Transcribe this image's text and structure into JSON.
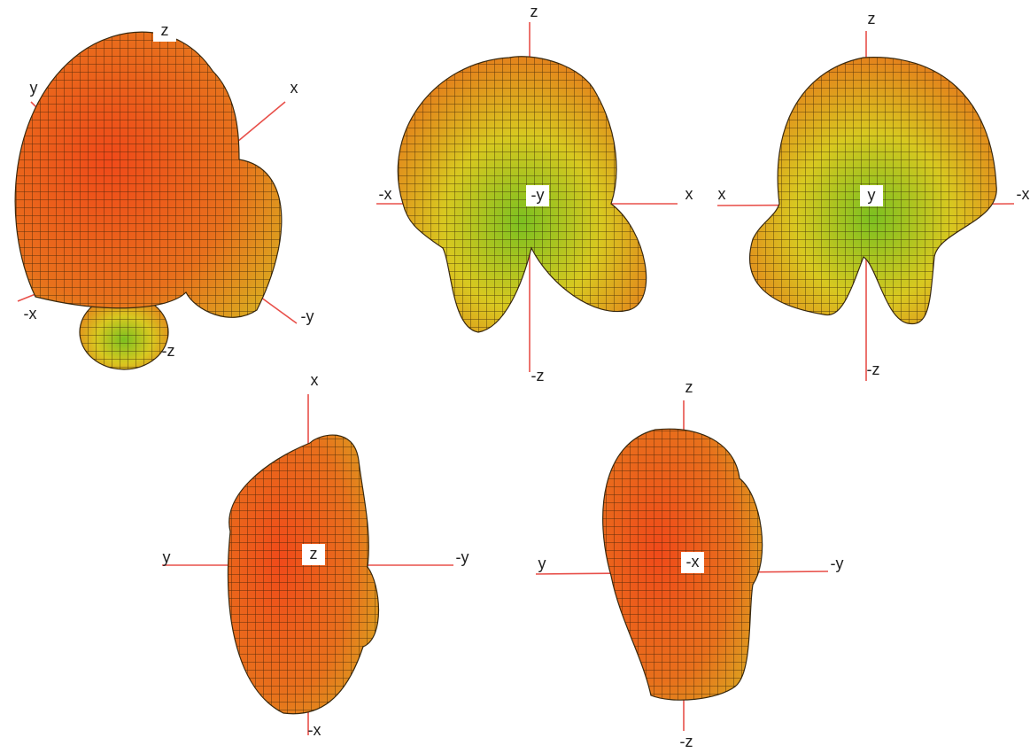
{
  "views": [
    {
      "labels": [
        "z",
        "y",
        "x",
        "-x",
        "-y",
        "-z"
      ]
    },
    {
      "labels": [
        "z",
        "-x",
        "-y",
        "x",
        "-z"
      ]
    },
    {
      "labels": [
        "z",
        "x",
        "y",
        "-x",
        "-z"
      ]
    },
    {
      "labels": [
        "x",
        "y",
        "z",
        "-y",
        "-x"
      ]
    },
    {
      "labels": [
        "z",
        "y",
        "-x",
        "-y",
        "-z"
      ]
    }
  ]
}
